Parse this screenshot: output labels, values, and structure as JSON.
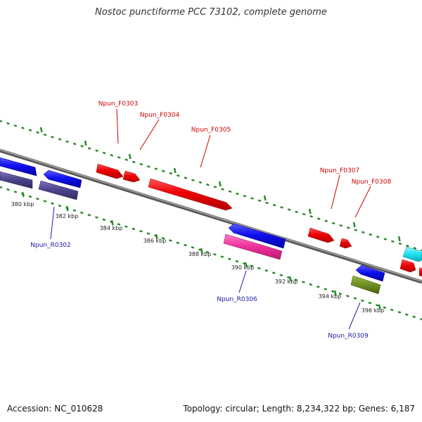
{
  "title": "Nostoc punctiforme PCC 73102, complete genome",
  "footer": {
    "accession": "Accession: NC_010628",
    "topology": "Topology: circular; Length: 8,234,322 bp; Genes: 6,187"
  },
  "axis": {
    "tick_labels": [
      "380 kbp",
      "382 kbp",
      "384 kbp",
      "386 kbp",
      "388 kbp",
      "390 kbp",
      "392 kbp",
      "394 kbp",
      "396 kbp"
    ]
  },
  "forward_genes": [
    {
      "label": "Npun_F0303"
    },
    {
      "label": "Npun_F0304"
    },
    {
      "label": "Npun_F0305"
    },
    {
      "label": "Npun_F0307"
    },
    {
      "label": "Npun_F0308"
    }
  ],
  "reverse_genes": [
    {
      "label": "Npun_R0302"
    },
    {
      "label": "Npun_R0306"
    },
    {
      "label": "Npun_R0309"
    }
  ],
  "colors": {
    "forward_label": "#cc0000",
    "reverse_label": "#1a1aaa",
    "backbone": "#8a8a8a",
    "tick_dots": "#2a8a2a"
  }
}
